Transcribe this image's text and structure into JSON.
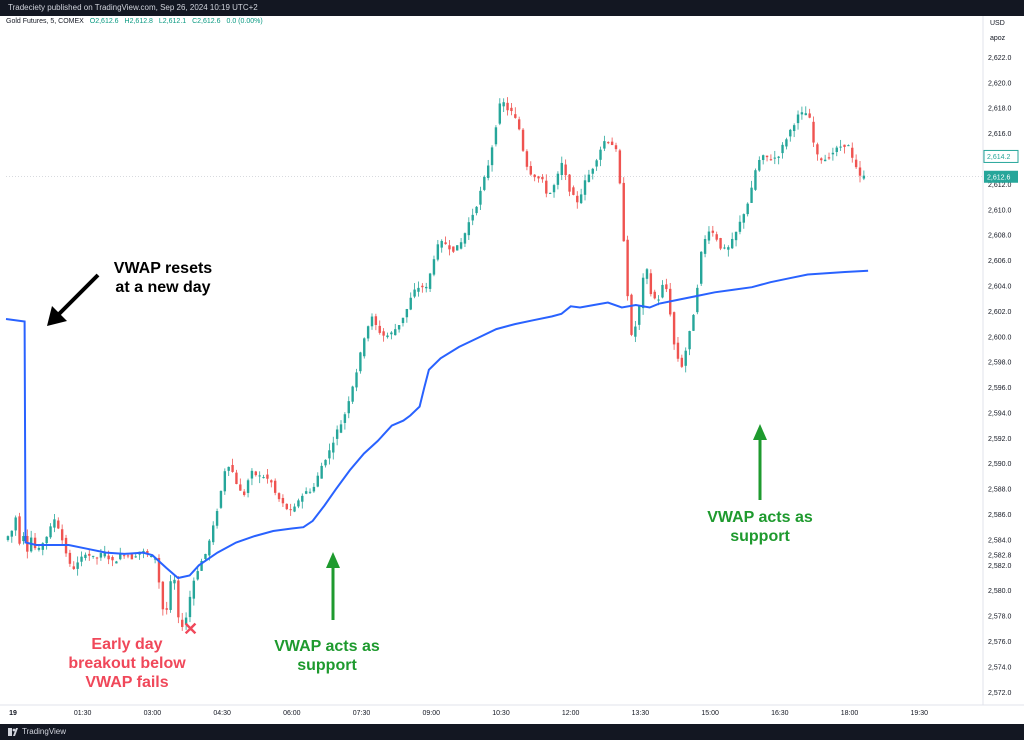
{
  "header": {
    "publish_line": "Tradeciety published on TradingView.com, Sep 26, 2024 10:19 UTC+2"
  },
  "legend": {
    "symbol": "Gold Futures, 5, COMEX",
    "open": "O2,612.6",
    "high": "H2,612.8",
    "low": "L2,612.1",
    "close": "C2,612.6",
    "change": "0.0 (0.00%)"
  },
  "axis_header": {
    "currency": "USD",
    "unit": "apoz"
  },
  "footer": {
    "brand": "TradingView"
  },
  "colors": {
    "up": "#26a69a",
    "down": "#ef5350",
    "vwap": "#2962ff",
    "green_note": "#1e9a2e",
    "red_note": "#f0485a"
  },
  "annotations": {
    "reset": [
      "VWAP resets",
      "at a new day"
    ],
    "support1": [
      "VWAP acts as",
      "support"
    ],
    "support2": [
      "VWAP acts as",
      "support"
    ],
    "fail": [
      "Early day",
      "breakout below",
      "VWAP fails"
    ]
  },
  "chart_data": {
    "type": "candlestick",
    "title": "Gold Futures, 5, COMEX",
    "ylim": [
      2571,
      2624
    ],
    "y_ticks": [
      2572,
      2574,
      2576,
      2578,
      2580,
      2582,
      2584,
      2586,
      2588,
      2590,
      2592,
      2594,
      2596,
      2598,
      2600,
      2602,
      2604,
      2606,
      2608,
      2610,
      2612,
      2616,
      2618,
      2620,
      2622
    ],
    "y_tick_labels": [
      "2,572.0",
      "2,574.0",
      "2,576.0",
      "2,578.0",
      "2,580.0",
      "2,582.0",
      "2,584.0",
      "2,586.0",
      "2,588.0",
      "2,590.0",
      "2,592.0",
      "2,594.0",
      "2,596.0",
      "2,598.0",
      "2,600.0",
      "2,602.0",
      "2,604.0",
      "2,606.0",
      "2,608.0",
      "2,610.0",
      "2,612.0",
      "2,616.0",
      "2,618.0",
      "2,620.0",
      "2,622.0"
    ],
    "extra_price_labels": [
      {
        "value": 2582.8,
        "text": "2,582.8"
      },
      {
        "value": 2614.2,
        "text": "2,614.2",
        "style": "outline"
      },
      {
        "value": 2612.6,
        "text": "2,612.6",
        "style": "current"
      }
    ],
    "x_ticks": [
      "19",
      "01:30",
      "03:00",
      "04:30",
      "06:00",
      "07:30",
      "09:00",
      "10:30",
      "12:00",
      "13:30",
      "15:00",
      "16:30",
      "18:00",
      "19:30"
    ],
    "x_range": [
      -0.15,
      20.85
    ],
    "x_tick_positions": [
      0,
      1.5,
      3,
      4.5,
      6,
      7.5,
      9,
      10.5,
      12,
      13.5,
      15,
      16.5,
      18,
      19.5
    ],
    "price_series": [
      [
        -0.15,
        2584
      ],
      [
        0.0,
        2584.5
      ],
      [
        0.1,
        2585.8
      ],
      [
        0.18,
        2583.8
      ],
      [
        0.25,
        2584.8
      ],
      [
        0.33,
        2583
      ],
      [
        0.45,
        2584.4
      ],
      [
        0.55,
        2582.8
      ],
      [
        0.65,
        2583.6
      ],
      [
        0.8,
        2584.5
      ],
      [
        0.95,
        2585.8
      ],
      [
        1.1,
        2584
      ],
      [
        1.2,
        2582.8
      ],
      [
        1.3,
        2581.6
      ],
      [
        1.45,
        2582.2
      ],
      [
        1.6,
        2583
      ],
      [
        1.8,
        2582.5
      ],
      [
        2.0,
        2583
      ],
      [
        2.2,
        2582.2
      ],
      [
        2.4,
        2583
      ],
      [
        2.6,
        2582.6
      ],
      [
        2.8,
        2583.2
      ],
      [
        3.0,
        2582.6
      ],
      [
        3.15,
        2582.6
      ],
      [
        3.22,
        2578.6
      ],
      [
        3.35,
        2578.5
      ],
      [
        3.45,
        2581
      ],
      [
        3.5,
        2581.4
      ],
      [
        3.62,
        2577
      ],
      [
        3.75,
        2577.6
      ],
      [
        3.9,
        2580.5
      ],
      [
        4.05,
        2582
      ],
      [
        4.2,
        2583
      ],
      [
        4.35,
        2585
      ],
      [
        4.5,
        2587.5
      ],
      [
        4.6,
        2589.5
      ],
      [
        4.7,
        2590
      ],
      [
        4.8,
        2589
      ],
      [
        4.9,
        2588
      ],
      [
        5.0,
        2587.4
      ],
      [
        5.1,
        2588.7
      ],
      [
        5.2,
        2589.4
      ],
      [
        5.3,
        2589
      ],
      [
        5.45,
        2589
      ],
      [
        5.6,
        2588.5
      ],
      [
        5.7,
        2587.5
      ],
      [
        5.85,
        2586.8
      ],
      [
        6.0,
        2586.2
      ],
      [
        6.1,
        2586.5
      ],
      [
        6.2,
        2587.3
      ],
      [
        6.35,
        2587.8
      ],
      [
        6.5,
        2588
      ],
      [
        6.6,
        2589
      ],
      [
        6.7,
        2590
      ],
      [
        6.85,
        2591
      ],
      [
        7.0,
        2592.5
      ],
      [
        7.15,
        2593.5
      ],
      [
        7.3,
        2595.5
      ],
      [
        7.45,
        2597.5
      ],
      [
        7.6,
        2600
      ],
      [
        7.75,
        2601.6
      ],
      [
        7.9,
        2600.5
      ],
      [
        8.05,
        2600
      ],
      [
        8.2,
        2600.3
      ],
      [
        8.35,
        2601
      ],
      [
        8.5,
        2602
      ],
      [
        8.65,
        2603.5
      ],
      [
        8.8,
        2604
      ],
      [
        8.95,
        2603.8
      ],
      [
        9.05,
        2605.5
      ],
      [
        9.15,
        2607
      ],
      [
        9.3,
        2607.5
      ],
      [
        9.45,
        2607
      ],
      [
        9.55,
        2606.8
      ],
      [
        9.7,
        2607.5
      ],
      [
        9.85,
        2609
      ],
      [
        10.0,
        2610.2
      ],
      [
        10.15,
        2612
      ],
      [
        10.3,
        2614
      ],
      [
        10.45,
        2617
      ],
      [
        10.55,
        2618.8
      ],
      [
        10.65,
        2618
      ],
      [
        10.8,
        2617.6
      ],
      [
        10.95,
        2616.2
      ],
      [
        11.05,
        2614
      ],
      [
        11.15,
        2613
      ],
      [
        11.3,
        2612.6
      ],
      [
        11.45,
        2612.2
      ],
      [
        11.55,
        2611
      ],
      [
        11.7,
        2612
      ],
      [
        11.85,
        2613.6
      ],
      [
        11.95,
        2612.4
      ],
      [
        12.05,
        2611.2
      ],
      [
        12.2,
        2610.6
      ],
      [
        12.35,
        2612.2
      ],
      [
        12.5,
        2613.2
      ],
      [
        12.65,
        2614.5
      ],
      [
        12.75,
        2615.4
      ],
      [
        12.9,
        2615.4
      ],
      [
        13.05,
        2614.4
      ],
      [
        13.15,
        2609.5
      ],
      [
        13.25,
        2604
      ],
      [
        13.35,
        2600
      ],
      [
        13.45,
        2601
      ],
      [
        13.55,
        2603
      ],
      [
        13.65,
        2606
      ],
      [
        13.75,
        2603.5
      ],
      [
        13.85,
        2603
      ],
      [
        13.95,
        2603
      ],
      [
        14.05,
        2604.5
      ],
      [
        14.15,
        2603
      ],
      [
        14.25,
        2599.6
      ],
      [
        14.35,
        2598.3
      ],
      [
        14.45,
        2597.6
      ],
      [
        14.55,
        2599.6
      ],
      [
        14.65,
        2601
      ],
      [
        14.75,
        2603.5
      ],
      [
        14.85,
        2606.6
      ],
      [
        15.0,
        2608.5
      ],
      [
        15.15,
        2608
      ],
      [
        15.3,
        2606.8
      ],
      [
        15.45,
        2607
      ],
      [
        15.6,
        2608.2
      ],
      [
        15.75,
        2609.6
      ],
      [
        15.9,
        2611
      ],
      [
        16.05,
        2613.7
      ],
      [
        16.2,
        2614.2
      ],
      [
        16.35,
        2614
      ],
      [
        16.5,
        2614.2
      ],
      [
        16.65,
        2615.4
      ],
      [
        16.8,
        2616.5
      ],
      [
        16.95,
        2617.5
      ],
      [
        17.1,
        2617.6
      ],
      [
        17.2,
        2617
      ],
      [
        17.3,
        2614.4
      ],
      [
        17.4,
        2614
      ],
      [
        17.55,
        2614
      ],
      [
        17.7,
        2614.6
      ],
      [
        17.85,
        2615
      ],
      [
        18.0,
        2615.2
      ],
      [
        18.1,
        2614
      ],
      [
        18.25,
        2612.6
      ],
      [
        18.35,
        2612.6
      ]
    ],
    "vwap": [
      [
        -0.15,
        2601.4
      ],
      [
        0.25,
        2601.2
      ],
      [
        0.27,
        2583.8
      ],
      [
        0.5,
        2583.6
      ],
      [
        0.8,
        2583.6
      ],
      [
        1.2,
        2583.6
      ],
      [
        1.6,
        2583.3
      ],
      [
        2.0,
        2583
      ],
      [
        2.4,
        2582.9
      ],
      [
        2.8,
        2583
      ],
      [
        3.0,
        2582.8
      ],
      [
        3.3,
        2581.8
      ],
      [
        3.55,
        2581
      ],
      [
        3.8,
        2581.2
      ],
      [
        4.0,
        2582
      ],
      [
        4.4,
        2583
      ],
      [
        4.8,
        2583.8
      ],
      [
        5.2,
        2584.3
      ],
      [
        5.6,
        2584.7
      ],
      [
        6.0,
        2584.9
      ],
      [
        6.25,
        2585
      ],
      [
        6.45,
        2585.5
      ],
      [
        6.7,
        2586.7
      ],
      [
        6.95,
        2588
      ],
      [
        7.25,
        2589.5
      ],
      [
        7.55,
        2590.8
      ],
      [
        7.85,
        2591.8
      ],
      [
        8.15,
        2593
      ],
      [
        8.4,
        2593.4
      ],
      [
        8.55,
        2593.8
      ],
      [
        8.75,
        2594.5
      ],
      [
        8.85,
        2596
      ],
      [
        8.95,
        2597.4
      ],
      [
        9.2,
        2598.3
      ],
      [
        9.6,
        2599.2
      ],
      [
        10.0,
        2599.9
      ],
      [
        10.4,
        2600.6
      ],
      [
        10.8,
        2601
      ],
      [
        11.2,
        2601.3
      ],
      [
        11.6,
        2601.6
      ],
      [
        11.8,
        2601.8
      ],
      [
        12.0,
        2602.4
      ],
      [
        12.2,
        2602.3
      ],
      [
        12.5,
        2602.5
      ],
      [
        12.8,
        2602.7
      ],
      [
        13.1,
        2602.3
      ],
      [
        13.4,
        2602.5
      ],
      [
        13.7,
        2602.3
      ],
      [
        13.9,
        2602.6
      ],
      [
        14.3,
        2602.9
      ],
      [
        14.7,
        2603.2
      ],
      [
        15.1,
        2603.5
      ],
      [
        15.5,
        2603.7
      ],
      [
        15.9,
        2603.9
      ],
      [
        16.3,
        2604.3
      ],
      [
        16.7,
        2604.6
      ],
      [
        17.1,
        2604.9
      ],
      [
        17.5,
        2605
      ],
      [
        17.9,
        2605.1
      ],
      [
        18.4,
        2605.2
      ]
    ]
  }
}
